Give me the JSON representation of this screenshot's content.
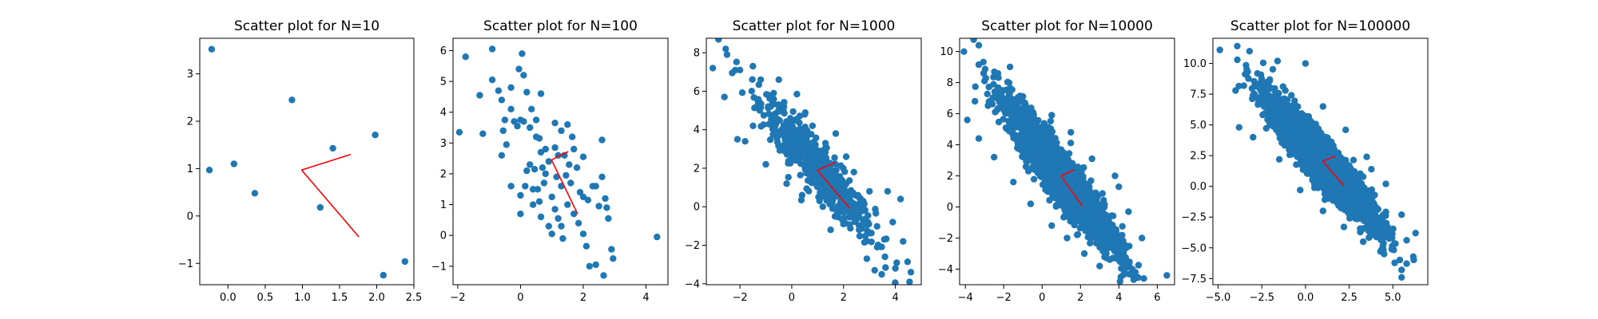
{
  "chart_data": [
    {
      "type": "scatter",
      "title": "Scatter plot for N=10",
      "xlim": [
        -0.38,
        2.5
      ],
      "ylim": [
        -1.45,
        3.75
      ],
      "xticks": [
        0.0,
        0.5,
        1.0,
        1.5,
        2.0,
        2.5
      ],
      "xtick_labels": [
        "0.0",
        "0.5",
        "1.0",
        "1.5",
        "2.0",
        "2.5"
      ],
      "yticks": [
        -1,
        0,
        1,
        2,
        3
      ],
      "ytick_labels": [
        "−1",
        "0",
        "1",
        "2",
        "3"
      ],
      "marker_color": "#1f77b4",
      "vector_color": "#ff0000",
      "points": [
        [
          -0.22,
          3.52
        ],
        [
          -0.25,
          0.97
        ],
        [
          0.08,
          1.1
        ],
        [
          0.36,
          0.48
        ],
        [
          0.86,
          2.45
        ],
        [
          1.24,
          0.18
        ],
        [
          1.41,
          1.43
        ],
        [
          1.98,
          1.71
        ],
        [
          2.09,
          -1.25
        ],
        [
          2.38,
          -0.96
        ]
      ],
      "vectors": [
        {
          "from": [
            0.99,
            0.97
          ],
          "to": [
            1.65,
            1.3
          ]
        },
        {
          "from": [
            0.99,
            0.97
          ],
          "to": [
            1.76,
            -0.44
          ]
        }
      ]
    },
    {
      "type": "scatter",
      "title": "Scatter plot for N=100",
      "xlim": [
        -2.15,
        4.7
      ],
      "ylim": [
        -1.6,
        6.4
      ],
      "xticks": [
        -2,
        0,
        2,
        4
      ],
      "xtick_labels": [
        "−2",
        "0",
        "2",
        "4"
      ],
      "yticks": [
        -1,
        0,
        1,
        2,
        3,
        4,
        5,
        6
      ],
      "ytick_labels": [
        "−1",
        "0",
        "1",
        "2",
        "3",
        "4",
        "5",
        "6"
      ],
      "marker_color": "#1f77b4",
      "vector_color": "#ff0000",
      "points": [
        [
          -1.95,
          3.35
        ],
        [
          -1.75,
          5.8
        ],
        [
          -1.3,
          4.55
        ],
        [
          -1.2,
          3.3
        ],
        [
          -0.9,
          6.05
        ],
        [
          -0.9,
          5.05
        ],
        [
          -0.7,
          4.7
        ],
        [
          -0.6,
          4.4
        ],
        [
          -0.5,
          3.75
        ],
        [
          -0.55,
          3.4
        ],
        [
          -0.45,
          2.95
        ],
        [
          -0.6,
          2.6
        ],
        [
          -0.3,
          4.1
        ],
        [
          -0.2,
          3.7
        ],
        [
          -0.1,
          3.55
        ],
        [
          0.0,
          3.75
        ],
        [
          0.1,
          3.7
        ],
        [
          -0.05,
          5.4
        ],
        [
          0.1,
          5.2
        ],
        [
          0.05,
          5.9
        ],
        [
          -0.3,
          4.8
        ],
        [
          0.2,
          4.65
        ],
        [
          0.35,
          4.1
        ],
        [
          0.5,
          3.75
        ],
        [
          0.3,
          3.5
        ],
        [
          0.5,
          3.2
        ],
        [
          0.65,
          4.6
        ],
        [
          0.6,
          3.15
        ],
        [
          0.65,
          2.7
        ],
        [
          0.3,
          2.3
        ],
        [
          0.2,
          2.1
        ],
        [
          0.15,
          1.6
        ],
        [
          -0.3,
          1.6
        ],
        [
          0.0,
          0.7
        ],
        [
          0.4,
          1.5
        ],
        [
          0.55,
          1.5
        ],
        [
          0.6,
          1.1
        ],
        [
          0.65,
          0.6
        ],
        [
          0.75,
          1.7
        ],
        [
          0.8,
          2.0
        ],
        [
          0.45,
          2.15
        ],
        [
          0.7,
          2.2
        ],
        [
          0.9,
          2.4
        ],
        [
          1.1,
          2.85
        ],
        [
          1.1,
          3.65
        ],
        [
          1.3,
          3.4
        ],
        [
          1.5,
          3.6
        ],
        [
          1.2,
          2.6
        ],
        [
          1.4,
          2.6
        ],
        [
          1.55,
          2.3
        ],
        [
          1.65,
          3.2
        ],
        [
          1.7,
          2.8
        ],
        [
          1.8,
          2.2
        ],
        [
          1.45,
          1.95
        ],
        [
          1.3,
          1.6
        ],
        [
          1.0,
          1.25
        ],
        [
          1.1,
          0.85
        ],
        [
          1.2,
          0.55
        ],
        [
          0.9,
          0.3
        ],
        [
          1.0,
          0.05
        ],
        [
          1.35,
          -0.1
        ],
        [
          1.5,
          1.0
        ],
        [
          1.7,
          0.7
        ],
        [
          1.9,
          1.4
        ],
        [
          2.0,
          1.25
        ],
        [
          1.85,
          0.4
        ],
        [
          2.0,
          0.05
        ],
        [
          2.15,
          1.15
        ],
        [
          2.3,
          1.6
        ],
        [
          2.5,
          0.95
        ],
        [
          2.6,
          1.9
        ],
        [
          2.1,
          -0.35
        ],
        [
          2.2,
          -1.0
        ],
        [
          2.4,
          -0.95
        ],
        [
          2.65,
          -1.3
        ],
        [
          2.6,
          3.1
        ],
        [
          2.7,
          1.2
        ],
        [
          2.8,
          0.55
        ],
        [
          2.9,
          -0.45
        ],
        [
          2.95,
          -0.75
        ],
        [
          4.35,
          -0.05
        ],
        [
          2.0,
          2.55
        ],
        [
          0.8,
          2.8
        ],
        [
          1.3,
          0.3
        ],
        [
          0.4,
          1.0
        ],
        [
          1.6,
          1.7
        ],
        [
          2.4,
          1.6
        ],
        [
          0.0,
          1.3
        ],
        [
          2.75,
          0.9
        ],
        [
          1.15,
          1.9
        ]
      ],
      "vectors": [
        {
          "from": [
            0.99,
            2.45
          ],
          "to": [
            1.52,
            2.72
          ]
        },
        {
          "from": [
            0.99,
            2.45
          ],
          "to": [
            1.82,
            0.7
          ]
        }
      ]
    },
    {
      "type": "scatter",
      "title": "Scatter plot for N=1000",
      "xlim": [
        -3.3,
        5.0
      ],
      "ylim": [
        -4.05,
        8.75
      ],
      "xticks": [
        -2,
        0,
        2,
        4
      ],
      "xtick_labels": [
        "−2",
        "0",
        "2",
        "4"
      ],
      "yticks": [
        -4,
        -2,
        0,
        2,
        4,
        6,
        8
      ],
      "ytick_labels": [
        "−4",
        "−2",
        "0",
        "2",
        "4",
        "6",
        "8"
      ],
      "marker_color": "#1f77b4",
      "vector_color": "#ff0000",
      "points": [
        [
          -3.05,
          7.2
        ],
        [
          -2.55,
          8.2
        ],
        [
          -2.5,
          7.9
        ],
        [
          -2.3,
          6.95
        ],
        [
          -2.6,
          5.7
        ],
        [
          -2.0,
          7.1
        ],
        [
          -1.5,
          7.3
        ],
        [
          -1.2,
          6.6
        ],
        [
          -0.5,
          6.6
        ],
        [
          -0.7,
          5.9
        ],
        [
          0.2,
          5.85
        ],
        [
          -2.1,
          3.5
        ],
        [
          -1.8,
          3.4
        ],
        [
          0.2,
          2.5
        ],
        [
          -0.2,
          1.2
        ],
        [
          0.4,
          0.6
        ],
        [
          1.2,
          0.0
        ],
        [
          2.0,
          -0.6
        ],
        [
          1.5,
          -1.2
        ],
        [
          2.6,
          -1.2
        ],
        [
          3.3,
          -2.1
        ],
        [
          3.6,
          -2.6
        ],
        [
          4.0,
          -3.2
        ],
        [
          4.6,
          -3.4
        ],
        [
          4.55,
          -3.9
        ],
        [
          4.3,
          -1.8
        ],
        [
          3.9,
          -0.8
        ],
        [
          3.0,
          0.8
        ],
        [
          2.4,
          1.8
        ],
        [
          2.1,
          2.6
        ],
        [
          1.3,
          3.3
        ],
        [
          0.8,
          4.2
        ],
        [
          3.2,
          -3.3
        ],
        [
          2.9,
          -2.7
        ],
        [
          4.2,
          0.4
        ],
        [
          3.7,
          0.8
        ],
        [
          -1.0,
          2.2
        ],
        [
          -0.3,
          5.2
        ],
        [
          0.5,
          4.8
        ],
        [
          1.7,
          3.8
        ]
      ],
      "vectors": [
        {
          "from": [
            0.99,
            1.9
          ],
          "to": [
            1.68,
            2.3
          ]
        },
        {
          "from": [
            0.99,
            1.9
          ],
          "to": [
            2.25,
            -0.1
          ]
        }
      ]
    },
    {
      "type": "scatter",
      "title": "Scatter plot for N=10000",
      "xlim": [
        -4.3,
        6.9
      ],
      "ylim": [
        -5.0,
        10.85
      ],
      "xticks": [
        -4,
        -2,
        0,
        2,
        4,
        6
      ],
      "xtick_labels": [
        "−4",
        "−2",
        "0",
        "2",
        "4",
        "6"
      ],
      "yticks": [
        -4,
        -2,
        0,
        2,
        4,
        6,
        8,
        10
      ],
      "ytick_labels": [
        "−4",
        "−2",
        "0",
        "2",
        "4",
        "6",
        "8",
        "10"
      ],
      "marker_color": "#1f77b4",
      "vector_color": "#ff0000",
      "points": [
        [
          -3.9,
          5.6
        ],
        [
          -3.3,
          10.4
        ],
        [
          -3.3,
          9.15
        ],
        [
          -3.5,
          6.8
        ],
        [
          -3.0,
          8.1
        ],
        [
          -2.0,
          7.5
        ],
        [
          -1.2,
          7.0
        ],
        [
          -3.3,
          4.4
        ],
        [
          -2.5,
          3.2
        ],
        [
          -1.5,
          1.6
        ],
        [
          -0.6,
          0.2
        ],
        [
          0.5,
          -1.2
        ],
        [
          1.3,
          -2.0
        ],
        [
          2.2,
          -3.0
        ],
        [
          3.0,
          -3.8
        ],
        [
          4.1,
          -4.5
        ],
        [
          5.3,
          -4.6
        ],
        [
          6.5,
          -4.4
        ],
        [
          5.2,
          -2.0
        ],
        [
          4.5,
          -0.3
        ],
        [
          4.0,
          1.3
        ],
        [
          3.8,
          2.0
        ],
        [
          2.6,
          3.1
        ],
        [
          1.5,
          4.8
        ],
        [
          0.5,
          5.9
        ],
        [
          0.9,
          2.2
        ],
        [
          -0.5,
          3.9
        ],
        [
          2.8,
          -0.2
        ]
      ],
      "vectors": [
        {
          "from": [
            0.99,
            2.0
          ],
          "to": [
            1.68,
            2.4
          ]
        },
        {
          "from": [
            0.99,
            2.0
          ],
          "to": [
            2.1,
            0.05
          ]
        }
      ]
    },
    {
      "type": "scatter",
      "title": "Scatter plot for N=100000",
      "xlim": [
        -5.3,
        7.0
      ],
      "ylim": [
        -8.0,
        12.05
      ],
      "xticks": [
        -5.0,
        -2.5,
        0.0,
        2.5,
        5.0
      ],
      "xtick_labels": [
        "−5.0",
        "−2.5",
        "0.0",
        "2.5",
        "5.0"
      ],
      "yticks": [
        -7.5,
        -5.0,
        -2.5,
        0.0,
        2.5,
        5.0,
        7.5,
        10.0
      ],
      "ytick_labels": [
        "−7.5",
        "−5.0",
        "−2.5",
        "0.0",
        "2.5",
        "5.0",
        "7.5",
        "10.0"
      ],
      "marker_color": "#1f77b4",
      "vector_color": "#ff0000",
      "points": [
        [
          -4.9,
          11.1
        ],
        [
          -3.9,
          10.3
        ],
        [
          -4.0,
          7.8
        ],
        [
          -3.8,
          4.8
        ],
        [
          -3.2,
          11.0
        ],
        [
          -1.6,
          10.2
        ],
        [
          0.0,
          10.0
        ],
        [
          -3.0,
          4.0
        ],
        [
          -1.5,
          2.2
        ],
        [
          -0.3,
          -0.3
        ],
        [
          1.0,
          -2.0
        ],
        [
          2.2,
          -3.3
        ],
        [
          3.3,
          -4.5
        ],
        [
          4.5,
          -5.5
        ],
        [
          5.5,
          -6.8
        ],
        [
          5.5,
          -7.4
        ],
        [
          6.3,
          -3.8
        ],
        [
          5.5,
          -2.3
        ],
        [
          4.6,
          0.2
        ],
        [
          3.5,
          2.4
        ],
        [
          2.3,
          4.6
        ],
        [
          1.0,
          6.5
        ],
        [
          -2.2,
          7.0
        ],
        [
          0.9,
          2.3
        ],
        [
          3.2,
          -1.0
        ]
      ],
      "vectors": [
        {
          "from": [
            0.99,
            2.05
          ],
          "to": [
            1.71,
            2.45
          ]
        },
        {
          "from": [
            0.99,
            2.05
          ],
          "to": [
            2.2,
            0.05
          ]
        }
      ]
    }
  ]
}
